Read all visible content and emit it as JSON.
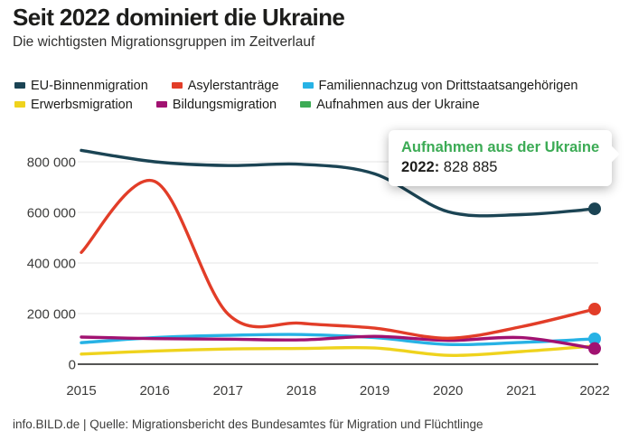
{
  "header": {
    "title": "Seit 2022 dominiert die Ukraine",
    "subtitle": "Die wichtigsten Migrationsgruppen im Zeitverlauf"
  },
  "legend": {
    "rows": [
      [
        {
          "label": "EU-Binnenmigration",
          "color": "#1b4454"
        },
        {
          "label": "Asylerstanträge",
          "color": "#e23d28"
        },
        {
          "label": "Familiennachzug von Drittstaatsangehörigen",
          "color": "#27b2e5"
        }
      ],
      [
        {
          "label": "Erwerbsmigration",
          "color": "#efd31d"
        },
        {
          "label": "Bildungsmigration",
          "color": "#a11271"
        },
        {
          "label": "Aufnahmen aus der Ukraine",
          "color": "#3cab55"
        }
      ]
    ]
  },
  "tooltip": {
    "title": "Aufnahmen aus der Ukraine",
    "year_label": "2022:",
    "value": "828 885"
  },
  "footer": {
    "text": "info.BILD.de | Quelle: Migrationsbericht des Bundesamtes für Migration und Flüchtlinge"
  },
  "chart_data": {
    "type": "line",
    "title": "Die wichtigsten Migrationsgruppen im Zeitverlauf",
    "x": [
      2015,
      2016,
      2017,
      2018,
      2019,
      2020,
      2021,
      2022
    ],
    "series": [
      {
        "name": "Erwerbsmigration",
        "color": "#efd31d",
        "values": [
          40000,
          52000,
          60000,
          62000,
          64000,
          35000,
          50000,
          72000
        ],
        "end_dot": false
      },
      {
        "name": "Familiennachzug von Drittstaatsangehörigen",
        "color": "#27b2e5",
        "values": [
          85000,
          105000,
          114000,
          117000,
          105000,
          78000,
          86000,
          100000
        ],
        "end_dot": true
      },
      {
        "name": "Bildungsmigration",
        "color": "#a11271",
        "values": [
          107000,
          101000,
          99000,
          96000,
          110000,
          94000,
          105000,
          62000
        ],
        "end_dot": true
      },
      {
        "name": "Asylerstanträge",
        "color": "#e23d28",
        "values": [
          441900,
          722400,
          198300,
          161900,
          142500,
          102600,
          148200,
          217800
        ],
        "end_dot": true
      },
      {
        "name": "EU-Binnenmigration",
        "color": "#1b4454",
        "values": [
          845000,
          800000,
          785000,
          790000,
          752000,
          603000,
          591000,
          614000
        ],
        "end_dot": true
      },
      {
        "name": "Aufnahmen aus der Ukraine",
        "color": "#3cab55",
        "values": [
          null,
          null,
          null,
          null,
          null,
          null,
          null,
          828885
        ],
        "end_dot": true
      }
    ],
    "annotation": {
      "series": "Aufnahmen aus der Ukraine",
      "year": 2022,
      "value": 828885,
      "display": "828 885"
    },
    "ylabel": "",
    "xlabel": "",
    "ylim": [
      0,
      870000
    ],
    "y_ticks": [
      {
        "value": 800000,
        "label": "800 000"
      },
      {
        "value": 600000,
        "label": "600 000"
      },
      {
        "value": 400000,
        "label": "400 000"
      },
      {
        "value": 200000,
        "label": "200 000"
      },
      {
        "value": 0,
        "label": "0"
      }
    ],
    "grid": true,
    "legend_position": "top"
  }
}
